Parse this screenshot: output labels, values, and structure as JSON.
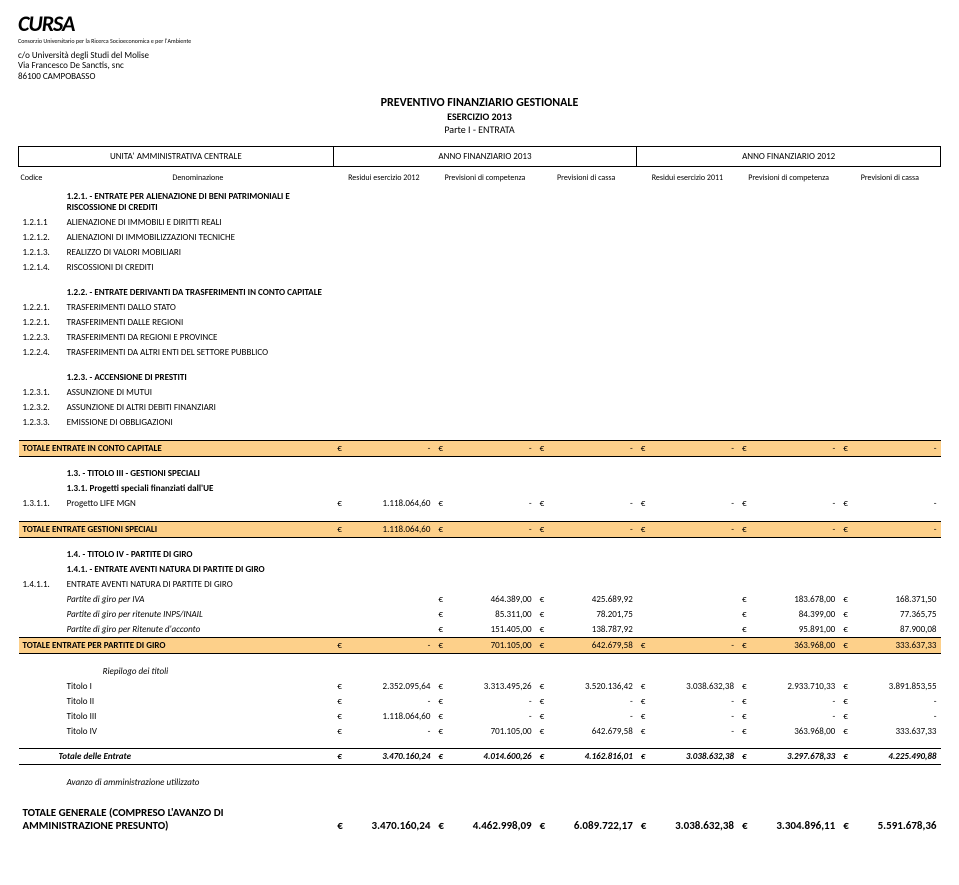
{
  "logo": {
    "name": "CURSA",
    "sub": "Consorzio Universitario per la Ricerca Socioeconomica e per l'Ambiente"
  },
  "org": {
    "l1": "c/o Università degli Studi del Molise",
    "l2": "Via Francesco De Sanctis, snc",
    "l3": "86100 CAMPOBASSO"
  },
  "title": {
    "main": "PREVENTIVO FINANZIARIO GESTIONALE",
    "sub": "ESERCIZIO 2013",
    "part": "Parte I - ENTRATA"
  },
  "header_bar": {
    "left": "UNITA' AMMINISTRATIVA CENTRALE",
    "mid": "ANNO FINANZIARIO 2013",
    "right": "ANNO FINANZIARIO 2012"
  },
  "cols": {
    "c1": "Codice",
    "c2": "Denominazione",
    "c3": "Residui esercizio 2012",
    "c4": "Previsioni di competenza",
    "c5": "Previsioni di cassa",
    "c6": "Residui esercizio 2011",
    "c7": "Previsioni di competenza",
    "c8": "Previsioni di cassa"
  },
  "cur": "€",
  "s121": {
    "head": "1.2.1. - ENTRATE PER ALIENAZIONE DI BENI PATRIMONIALI E RISCOSSIONE DI CREDITI",
    "r": [
      {
        "c": "1.2.1.1",
        "d": "ALIENAZIONE DI IMMOBILI E DIRITTI REALI"
      },
      {
        "c": "1.2.1.2.",
        "d": "ALIENAZIONI DI IMMOBILIZZAZIONI TECNICHE"
      },
      {
        "c": "1.2.1.3.",
        "d": "REALIZZO DI VALORI MOBILIARI"
      },
      {
        "c": "1.2.1.4.",
        "d": "RISCOSSIONI DI CREDITI"
      }
    ]
  },
  "s122": {
    "head": "1.2.2. - ENTRATE DERIVANTI DA TRASFERIMENTI IN CONTO CAPITALE",
    "r": [
      {
        "c": "1.2.2.1.",
        "d": "TRASFERIMENTI DALLO STATO"
      },
      {
        "c": "1.2.2.1.",
        "d": "TRASFERIMENTI DALLE REGIONI"
      },
      {
        "c": "1.2.2.3.",
        "d": "TRASFERIMENTI DA REGIONI E PROVINCE"
      },
      {
        "c": "1.2.2.4.",
        "d": "TRASFERIMENTI DA ALTRI ENTI DEL SETTORE PUBBLICO"
      }
    ]
  },
  "s123": {
    "head": "1.2.3. - ACCENSIONE DI PRESTITI",
    "r": [
      {
        "c": "1.2.3.1.",
        "d": "ASSUNZIONE DI MUTUI"
      },
      {
        "c": "1.2.3.2.",
        "d": "ASSUNZIONE DI ALTRI DEBITI FINANZIARI"
      },
      {
        "c": "1.2.3.3.",
        "d": "EMISSIONE DI OBBLIGAZIONI"
      }
    ]
  },
  "tot_cc": {
    "label": "TOTALE ENTRATE IN CONTO CAPITALE",
    "v": [
      "-",
      "-",
      "-",
      "-",
      "-",
      "-"
    ]
  },
  "s13": {
    "t1": "1.3. - TITOLO III - GESTIONI SPECIALI",
    "t2": "1.3.1. Progetti speciali finanziati dall'UE",
    "r": {
      "c": "1.3.1.1.",
      "d": "Progetto LIFE MGN",
      "v": [
        "1.118.064,60",
        "-",
        "-",
        "-",
        "-",
        "-"
      ]
    }
  },
  "tot_gs": {
    "label": "TOTALE ENTRATE GESTIONI SPECIALI",
    "v": [
      "1.118.064,60",
      "-",
      "-",
      "-",
      "-",
      "-"
    ]
  },
  "s14": {
    "t1": "1.4. - TITOLO IV - PARTITE DI GIRO",
    "t2": "1.4.1. - ENTRATE AVENTI NATURA DI PARTITE DI GIRO",
    "r0": {
      "c": "1.4.1.1.",
      "d": "ENTRATE AVENTI NATURA DI PARTITE DI GIRO"
    },
    "r": [
      {
        "d": "Partite di giro per IVA",
        "v": [
          "",
          "464.389,00",
          "425.689,92",
          "",
          "183.678,00",
          "168.371,50"
        ]
      },
      {
        "d": "Partite di giro per ritenute INPS/INAIL",
        "v": [
          "",
          "85.311,00",
          "78.201,75",
          "",
          "84.399,00",
          "77.365,75"
        ]
      },
      {
        "d": "Partite di giro per Ritenute d'acconto",
        "v": [
          "",
          "151.405,00",
          "138.787,92",
          "",
          "95.891,00",
          "87.900,08"
        ]
      }
    ]
  },
  "tot_pg": {
    "label": "TOTALE ENTRATE PER PARTITE DI GIRO",
    "v": [
      "-",
      "701.105,00",
      "642.679,58",
      "-",
      "363.968,00",
      "333.637,33"
    ]
  },
  "riep": {
    "head": "Riepilogo dei titoli",
    "r": [
      {
        "d": "Titolo I",
        "v": [
          "2.352.095,64",
          "3.313.495,26",
          "3.520.136,42",
          "3.038.632,38",
          "2.933.710,33",
          "3.891.853,55"
        ]
      },
      {
        "d": "Titolo II",
        "v": [
          "-",
          "-",
          "-",
          "-",
          "-",
          "-"
        ]
      },
      {
        "d": "Titolo III",
        "v": [
          "1.118.064,60",
          "-",
          "-",
          "-",
          "-",
          "-"
        ]
      },
      {
        "d": "Titolo IV",
        "v": [
          "-",
          "701.105,00",
          "642.679,58",
          "-",
          "363.968,00",
          "333.637,33"
        ]
      }
    ]
  },
  "tot_entrate": {
    "label": "Totale delle Entrate",
    "v": [
      "3.470.160,24",
      "4.014.600,26",
      "4.162.816,01",
      "3.038.632,38",
      "3.297.678,33",
      "4.225.490,88"
    ]
  },
  "avanzo": "Avanzo di amministrazione utilizzato",
  "tot_gen": {
    "l1": "TOTALE GENERALE (COMPRESO L'AVANZO DI",
    "l2": "AMMINISTRAZIONE PRESUNTO)",
    "v": [
      "3.470.160,24",
      "4.462.998,09",
      "6.089.722,17",
      "3.038.632,38",
      "3.304.896,11",
      "5.591.678,36"
    ]
  }
}
